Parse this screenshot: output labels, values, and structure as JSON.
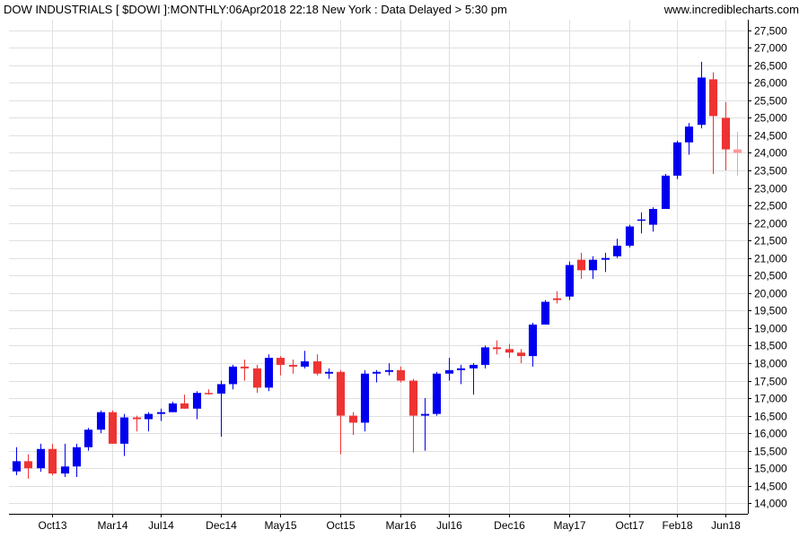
{
  "header": {
    "title": "DOW INDUSTRIALS [ $DOWI ]:MONTHLY:06Apr2018 22:18 New York : Data Delayed > 5:30 pm",
    "source": "www.incrediblecharts.com"
  },
  "chart_data": {
    "type": "candlestick",
    "title": "DOW INDUSTRIALS [ $DOWI ]:MONTHLY:06Apr2018 22:18 New York : Data Delayed > 5:30 pm",
    "ylim": [
      13700,
      27800
    ],
    "y_ticks": [
      14000,
      14500,
      15000,
      15500,
      16000,
      16500,
      17000,
      17500,
      18000,
      18500,
      19000,
      19500,
      20000,
      20500,
      21000,
      21500,
      22000,
      22500,
      23000,
      23500,
      24000,
      24500,
      25000,
      25500,
      26000,
      26500,
      27000,
      27500
    ],
    "y_tick_labels": [
      "14,000",
      "14,500",
      "15,000",
      "15,500",
      "16,000",
      "16,500",
      "17,000",
      "17,500",
      "18,000",
      "18,500",
      "19,000",
      "19,500",
      "20,000",
      "20,500",
      "21,000",
      "21,500",
      "22,000",
      "22,500",
      "23,000",
      "23,500",
      "24,000",
      "24,500",
      "25,000",
      "25,500",
      "26,000",
      "26,500",
      "27,000",
      "27,500"
    ],
    "x_tick_labels": [
      {
        "label": "Oct13",
        "index": 3
      },
      {
        "label": "Mar14",
        "index": 8
      },
      {
        "label": "Jul14",
        "index": 12
      },
      {
        "label": "Dec14",
        "index": 17
      },
      {
        "label": "May15",
        "index": 22
      },
      {
        "label": "Oct15",
        "index": 27
      },
      {
        "label": "Mar16",
        "index": 32
      },
      {
        "label": "Jul16",
        "index": 36
      },
      {
        "label": "Dec16",
        "index": 41
      },
      {
        "label": "May17",
        "index": 46
      },
      {
        "label": "Oct17",
        "index": 51
      },
      {
        "label": "Feb18",
        "index": 55
      },
      {
        "label": "Jun18",
        "index": 59
      }
    ],
    "x_range": [
      -0.6,
      60.9
    ],
    "colors": {
      "up": "#0000ee",
      "down": "#ee3333",
      "current": "#ff9999"
    },
    "candles": [
      {
        "month": "Jul13",
        "open": 14910,
        "high": 15600,
        "low": 14800,
        "close": 15200
      },
      {
        "month": "Aug13",
        "open": 15200,
        "high": 15400,
        "low": 14700,
        "close": 15000
      },
      {
        "month": "Sep13",
        "open": 15000,
        "high": 15700,
        "low": 14900,
        "close": 15550
      },
      {
        "month": "Oct13",
        "open": 15550,
        "high": 15700,
        "low": 14800,
        "close": 14850
      },
      {
        "month": "Nov13",
        "open": 14850,
        "high": 15700,
        "low": 14750,
        "close": 15050
      },
      {
        "month": "Dec13",
        "open": 15050,
        "high": 15700,
        "low": 14750,
        "close": 15600
      },
      {
        "month": "Jan14",
        "open": 15600,
        "high": 16150,
        "low": 15500,
        "close": 16100
      },
      {
        "month": "Feb14",
        "open": 16100,
        "high": 16650,
        "low": 16000,
        "close": 16600
      },
      {
        "month": "Mar14",
        "open": 16600,
        "high": 16650,
        "low": 15700,
        "close": 15700
      },
      {
        "month": "Apr14",
        "open": 15700,
        "high": 16550,
        "low": 15350,
        "close": 16450
      },
      {
        "month": "May14",
        "open": 16450,
        "high": 16500,
        "low": 16050,
        "close": 16400
      },
      {
        "month": "Jun14",
        "open": 16400,
        "high": 16600,
        "low": 16050,
        "close": 16550
      },
      {
        "month": "Jul14",
        "open": 16550,
        "high": 16700,
        "low": 16350,
        "close": 16600
      },
      {
        "month": "Aug14",
        "open": 16600,
        "high": 16900,
        "low": 16600,
        "close": 16850
      },
      {
        "month": "Sep14",
        "open": 16850,
        "high": 17100,
        "low": 16700,
        "close": 16700
      },
      {
        "month": "Oct14",
        "open": 16700,
        "high": 17200,
        "low": 16400,
        "close": 17150
      },
      {
        "month": "Nov14",
        "open": 17150,
        "high": 17250,
        "low": 17100,
        "close": 17130
      },
      {
        "month": "Dec14",
        "open": 17130,
        "high": 17500,
        "low": 15900,
        "close": 17400
      },
      {
        "month": "Jan15",
        "open": 17400,
        "high": 17950,
        "low": 17250,
        "close": 17900
      },
      {
        "month": "Feb15",
        "open": 17900,
        "high": 18100,
        "low": 17500,
        "close": 17850
      },
      {
        "month": "Mar15",
        "open": 17850,
        "high": 17950,
        "low": 17150,
        "close": 17300
      },
      {
        "month": "Apr15",
        "open": 17300,
        "high": 18250,
        "low": 17200,
        "close": 18150
      },
      {
        "month": "May15",
        "open": 18150,
        "high": 18200,
        "low": 17650,
        "close": 17950
      },
      {
        "month": "Jun15",
        "open": 17950,
        "high": 18100,
        "low": 17700,
        "close": 17900
      },
      {
        "month": "Jul15",
        "open": 17900,
        "high": 18350,
        "low": 17850,
        "close": 18050
      },
      {
        "month": "Aug15",
        "open": 18050,
        "high": 18250,
        "low": 17650,
        "close": 17700
      },
      {
        "month": "Sep15",
        "open": 17700,
        "high": 17850,
        "low": 17550,
        "close": 17750
      },
      {
        "month": "Oct15",
        "open": 17750,
        "high": 17800,
        "low": 15400,
        "close": 16500
      },
      {
        "month": "Nov15",
        "open": 16500,
        "high": 16600,
        "low": 15950,
        "close": 16300
      },
      {
        "month": "Dec15",
        "open": 16300,
        "high": 17800,
        "low": 16050,
        "close": 17700
      },
      {
        "month": "Jan16",
        "open": 17700,
        "high": 17800,
        "low": 17450,
        "close": 17750
      },
      {
        "month": "Feb16",
        "open": 17750,
        "high": 18000,
        "low": 17650,
        "close": 17800
      },
      {
        "month": "Mar16",
        "open": 17800,
        "high": 17900,
        "low": 17450,
        "close": 17500
      },
      {
        "month": "Apr16",
        "open": 17500,
        "high": 17550,
        "low": 15450,
        "close": 16500
      },
      {
        "month": "May16",
        "open": 16500,
        "high": 17000,
        "low": 15500,
        "close": 16550
      },
      {
        "month": "Jun16",
        "open": 16550,
        "high": 17750,
        "low": 16500,
        "close": 17700
      },
      {
        "month": "Jul16",
        "open": 17700,
        "high": 18150,
        "low": 17500,
        "close": 17800
      },
      {
        "month": "Aug16",
        "open": 17800,
        "high": 17950,
        "low": 17400,
        "close": 17850
      },
      {
        "month": "Sep16",
        "open": 17850,
        "high": 18000,
        "low": 17100,
        "close": 17950
      },
      {
        "month": "Oct16",
        "open": 17950,
        "high": 18500,
        "low": 17850,
        "close": 18450
      },
      {
        "month": "Nov16",
        "open": 18450,
        "high": 18650,
        "low": 18250,
        "close": 18400
      },
      {
        "month": "Dec16",
        "open": 18400,
        "high": 18550,
        "low": 18150,
        "close": 18300
      },
      {
        "month": "Jan17",
        "open": 18300,
        "high": 18400,
        "low": 18000,
        "close": 18200
      },
      {
        "month": "Feb17",
        "open": 18200,
        "high": 19150,
        "low": 17900,
        "close": 19100
      },
      {
        "month": "Mar17",
        "open": 19100,
        "high": 19800,
        "low": 19100,
        "close": 19750
      },
      {
        "month": "Apr17",
        "open": 19850,
        "high": 20050,
        "low": 19700,
        "close": 19800
      },
      {
        "month": "May17",
        "open": 19900,
        "high": 20900,
        "low": 19800,
        "close": 20800
      },
      {
        "month": "Jun17",
        "open": 20950,
        "high": 21150,
        "low": 20400,
        "close": 20650
      },
      {
        "month": "Jul17",
        "open": 20650,
        "high": 21050,
        "low": 20400,
        "close": 20950
      },
      {
        "month": "Aug17",
        "open": 20950,
        "high": 21150,
        "low": 20600,
        "close": 21000
      },
      {
        "month": "Sep17",
        "open": 21050,
        "high": 21550,
        "low": 21000,
        "close": 21350
      },
      {
        "month": "Oct17",
        "open": 21350,
        "high": 21950,
        "low": 21300,
        "close": 21900
      },
      {
        "month": "Nov17",
        "open": 22100,
        "high": 22300,
        "low": 21700,
        "close": 22100
      },
      {
        "month": "Dec17",
        "open": 21950,
        "high": 22450,
        "low": 21750,
        "close": 22400
      },
      {
        "month": "Jan18",
        "open": 22400,
        "high": 23400,
        "low": 22400,
        "close": 23350
      },
      {
        "month": "Feb18",
        "open": 23350,
        "high": 24350,
        "low": 23250,
        "close": 24300
      },
      {
        "month": "Mar18",
        "open": 24300,
        "high": 24850,
        "low": 23950,
        "close": 24750
      },
      {
        "month": "Apr18",
        "open": 24800,
        "high": 26600,
        "low": 24700,
        "close": 26150
      },
      {
        "month": "May18",
        "open": 26100,
        "high": 26300,
        "low": 23400,
        "close": 25050
      },
      {
        "month": "Jun18",
        "open": 25000,
        "high": 25450,
        "low": 23500,
        "close": 24100
      },
      {
        "month": "Jul18",
        "open": 24100,
        "high": 24600,
        "low": 23350,
        "close": 24000
      }
    ]
  }
}
